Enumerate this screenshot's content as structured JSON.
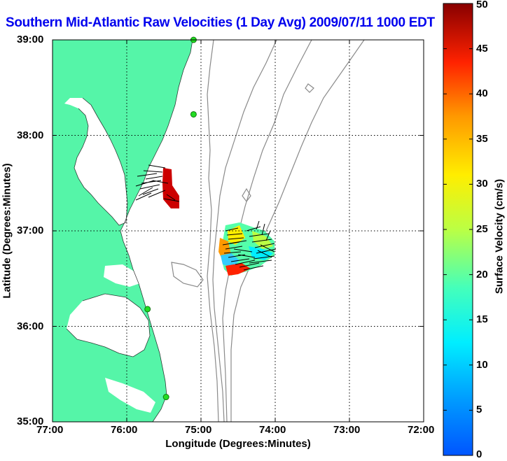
{
  "title": "Southern Mid-Atlantic Raw Velocities (1 Day Avg) 2009/07/11 1000 EDT",
  "map": {
    "xlabel": "Longitude (Degrees:Minutes)",
    "ylabel": "Latitude (Degrees:Minutes)",
    "xlim": [
      -77,
      -72
    ],
    "ylim": [
      35,
      39
    ],
    "x_ticks": [
      "77:00",
      "76:00",
      "75:00",
      "74:00",
      "73:00",
      "72:00"
    ],
    "y_ticks": [
      "39:00",
      "38:00",
      "37:00",
      "36:00",
      "35:00"
    ],
    "grid": "dotted",
    "land_color": "#55f5a8",
    "water_color": "#ffffff",
    "bathymetry_color": "#8a8a8a"
  },
  "colorbar": {
    "label": "Surface Velocity (cm/s)",
    "ticks": [
      "50",
      "45",
      "40",
      "35",
      "30",
      "25",
      "20",
      "15",
      "10",
      "5",
      "0"
    ],
    "range": [
      0,
      50
    ],
    "colormap": "jet"
  },
  "stations": [
    {
      "lon": -75.1,
      "lat": 39.0
    },
    {
      "lon": -75.1,
      "lat": 38.22
    },
    {
      "lon": -75.72,
      "lat": 36.18
    },
    {
      "lon": -75.47,
      "lat": 35.26
    }
  ],
  "patches": [
    {
      "name": "chesapeake-mouth-patch",
      "speed_cm_s": 45
    },
    {
      "name": "offshore-patch",
      "speed_cm_s": 18
    }
  ]
}
